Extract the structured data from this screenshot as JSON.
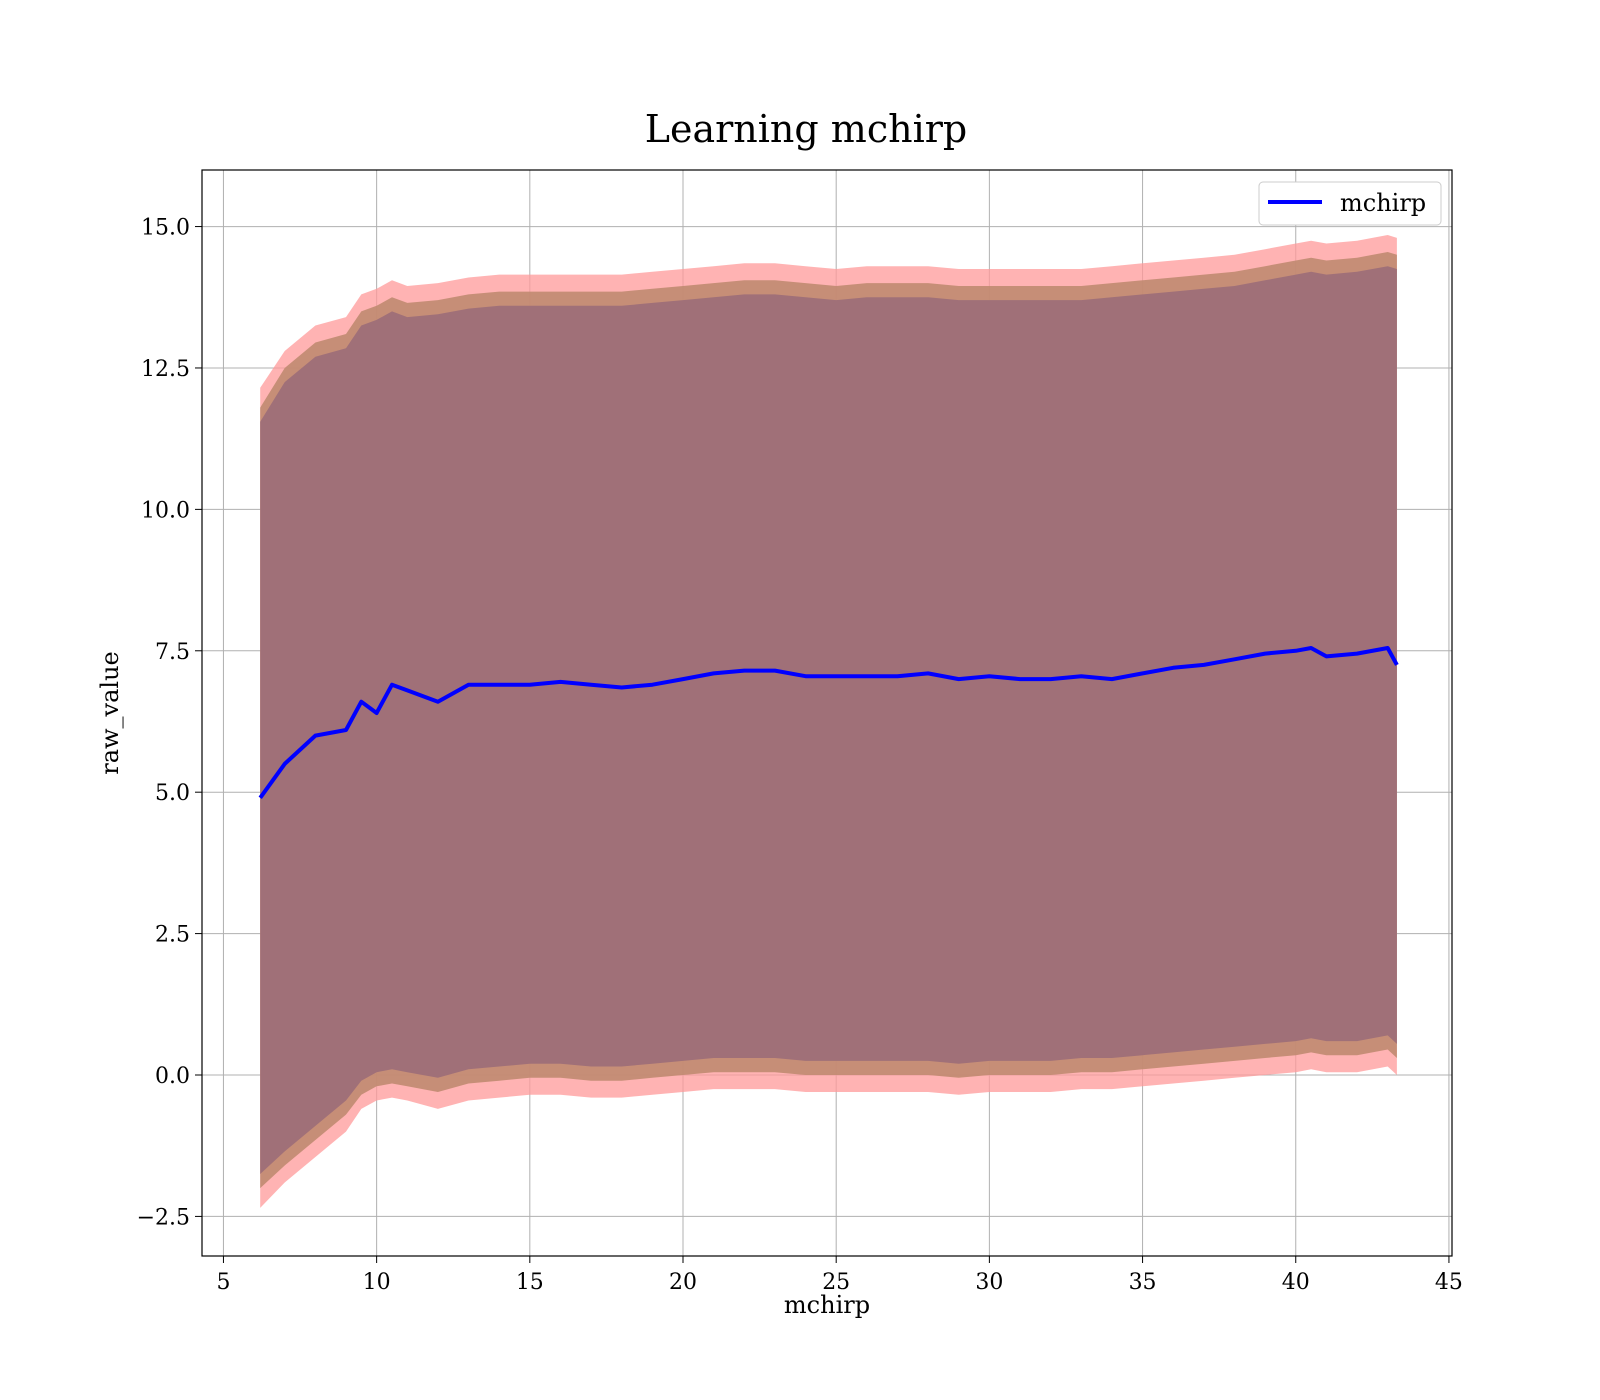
{
  "chart_data": {
    "type": "line",
    "title": "Learning mchirp",
    "xlabel": "mchirp",
    "ylabel": "raw_value",
    "xlim": [
      4.3,
      45.1
    ],
    "ylim": [
      -3.2,
      16.0
    ],
    "xticks": [
      5,
      10,
      15,
      20,
      25,
      30,
      35,
      40,
      45
    ],
    "yticks": [
      -2.5,
      0.0,
      2.5,
      5.0,
      7.5,
      10.0,
      12.5,
      15.0
    ],
    "xtick_labels": [
      "5",
      "10",
      "15",
      "20",
      "25",
      "30",
      "35",
      "40",
      "45"
    ],
    "ytick_labels": [
      "−2.5",
      "0.0",
      "2.5",
      "5.0",
      "7.5",
      "10.0",
      "12.5",
      "15.0"
    ],
    "grid": true,
    "legend": {
      "placement": "top-right",
      "entries": [
        "mchirp"
      ]
    },
    "colors": {
      "line": "#0000ff",
      "outer_band": "#ff9999",
      "middle_band": "#c08a70",
      "inner_band": "#a07078",
      "grid": "#b0b0b0"
    },
    "x": [
      6.2,
      7.0,
      8.0,
      9.0,
      9.5,
      10.0,
      10.5,
      11.0,
      12.0,
      13.0,
      14.0,
      15.0,
      16.0,
      17.0,
      18.0,
      19.0,
      20.0,
      21.0,
      22.0,
      23.0,
      24.0,
      25.0,
      26.0,
      27.0,
      28.0,
      29.0,
      30.0,
      31.0,
      32.0,
      33.0,
      34.0,
      35.0,
      36.0,
      37.0,
      38.0,
      39.0,
      40.0,
      40.5,
      41.0,
      42.0,
      43.0,
      43.3
    ],
    "series": [
      {
        "name": "mchirp",
        "values": [
          4.9,
          5.5,
          6.0,
          6.1,
          6.6,
          6.4,
          6.9,
          6.8,
          6.6,
          6.9,
          6.9,
          6.9,
          6.95,
          6.9,
          6.85,
          6.9,
          7.0,
          7.1,
          7.15,
          7.15,
          7.05,
          7.05,
          7.05,
          7.05,
          7.1,
          7.0,
          7.05,
          7.0,
          7.0,
          7.05,
          7.0,
          7.1,
          7.2,
          7.25,
          7.35,
          7.45,
          7.5,
          7.55,
          7.4,
          7.45,
          7.55,
          7.25
        ]
      }
    ],
    "bands": [
      {
        "lower": [
          -2.35,
          -1.9,
          -1.45,
          -1.0,
          -0.6,
          -0.45,
          -0.4,
          -0.45,
          -0.6,
          -0.45,
          -0.4,
          -0.35,
          -0.35,
          -0.4,
          -0.4,
          -0.35,
          -0.3,
          -0.25,
          -0.25,
          -0.25,
          -0.3,
          -0.3,
          -0.3,
          -0.3,
          -0.3,
          -0.35,
          -0.3,
          -0.3,
          -0.3,
          -0.25,
          -0.25,
          -0.2,
          -0.15,
          -0.1,
          -0.05,
          0.0,
          0.05,
          0.1,
          0.05,
          0.05,
          0.15,
          0.0
        ],
        "upper": [
          12.15,
          12.8,
          13.25,
          13.4,
          13.8,
          13.9,
          14.05,
          13.95,
          14.0,
          14.1,
          14.15,
          14.15,
          14.15,
          14.15,
          14.15,
          14.2,
          14.25,
          14.3,
          14.35,
          14.35,
          14.3,
          14.25,
          14.3,
          14.3,
          14.3,
          14.25,
          14.25,
          14.25,
          14.25,
          14.25,
          14.3,
          14.35,
          14.4,
          14.45,
          14.5,
          14.6,
          14.7,
          14.75,
          14.7,
          14.75,
          14.85,
          14.8
        ]
      },
      {
        "lower": [
          -2.0,
          -1.6,
          -1.15,
          -0.7,
          -0.35,
          -0.2,
          -0.15,
          -0.2,
          -0.3,
          -0.15,
          -0.1,
          -0.05,
          -0.05,
          -0.1,
          -0.1,
          -0.05,
          0.0,
          0.05,
          0.05,
          0.05,
          0.0,
          0.0,
          0.0,
          0.0,
          0.0,
          -0.05,
          0.0,
          0.0,
          0.0,
          0.05,
          0.05,
          0.1,
          0.15,
          0.2,
          0.25,
          0.3,
          0.35,
          0.4,
          0.35,
          0.35,
          0.45,
          0.3
        ],
        "upper": [
          11.8,
          12.5,
          12.95,
          13.1,
          13.5,
          13.6,
          13.75,
          13.65,
          13.7,
          13.8,
          13.85,
          13.85,
          13.85,
          13.85,
          13.85,
          13.9,
          13.95,
          14.0,
          14.05,
          14.05,
          14.0,
          13.95,
          14.0,
          14.0,
          14.0,
          13.95,
          13.95,
          13.95,
          13.95,
          13.95,
          14.0,
          14.05,
          14.1,
          14.15,
          14.2,
          14.3,
          14.4,
          14.45,
          14.4,
          14.45,
          14.55,
          14.5
        ]
      },
      {
        "lower": [
          -1.75,
          -1.35,
          -0.9,
          -0.45,
          -0.1,
          0.05,
          0.1,
          0.05,
          -0.05,
          0.1,
          0.15,
          0.2,
          0.2,
          0.15,
          0.15,
          0.2,
          0.25,
          0.3,
          0.3,
          0.3,
          0.25,
          0.25,
          0.25,
          0.25,
          0.25,
          0.2,
          0.25,
          0.25,
          0.25,
          0.3,
          0.3,
          0.35,
          0.4,
          0.45,
          0.5,
          0.55,
          0.6,
          0.65,
          0.6,
          0.6,
          0.7,
          0.55
        ],
        "upper": [
          11.55,
          12.25,
          12.7,
          12.85,
          13.25,
          13.35,
          13.5,
          13.4,
          13.45,
          13.55,
          13.6,
          13.6,
          13.6,
          13.6,
          13.6,
          13.65,
          13.7,
          13.75,
          13.8,
          13.8,
          13.75,
          13.7,
          13.75,
          13.75,
          13.75,
          13.7,
          13.7,
          13.7,
          13.7,
          13.7,
          13.75,
          13.8,
          13.85,
          13.9,
          13.95,
          14.05,
          14.15,
          14.2,
          14.15,
          14.2,
          14.3,
          14.25
        ]
      }
    ]
  }
}
